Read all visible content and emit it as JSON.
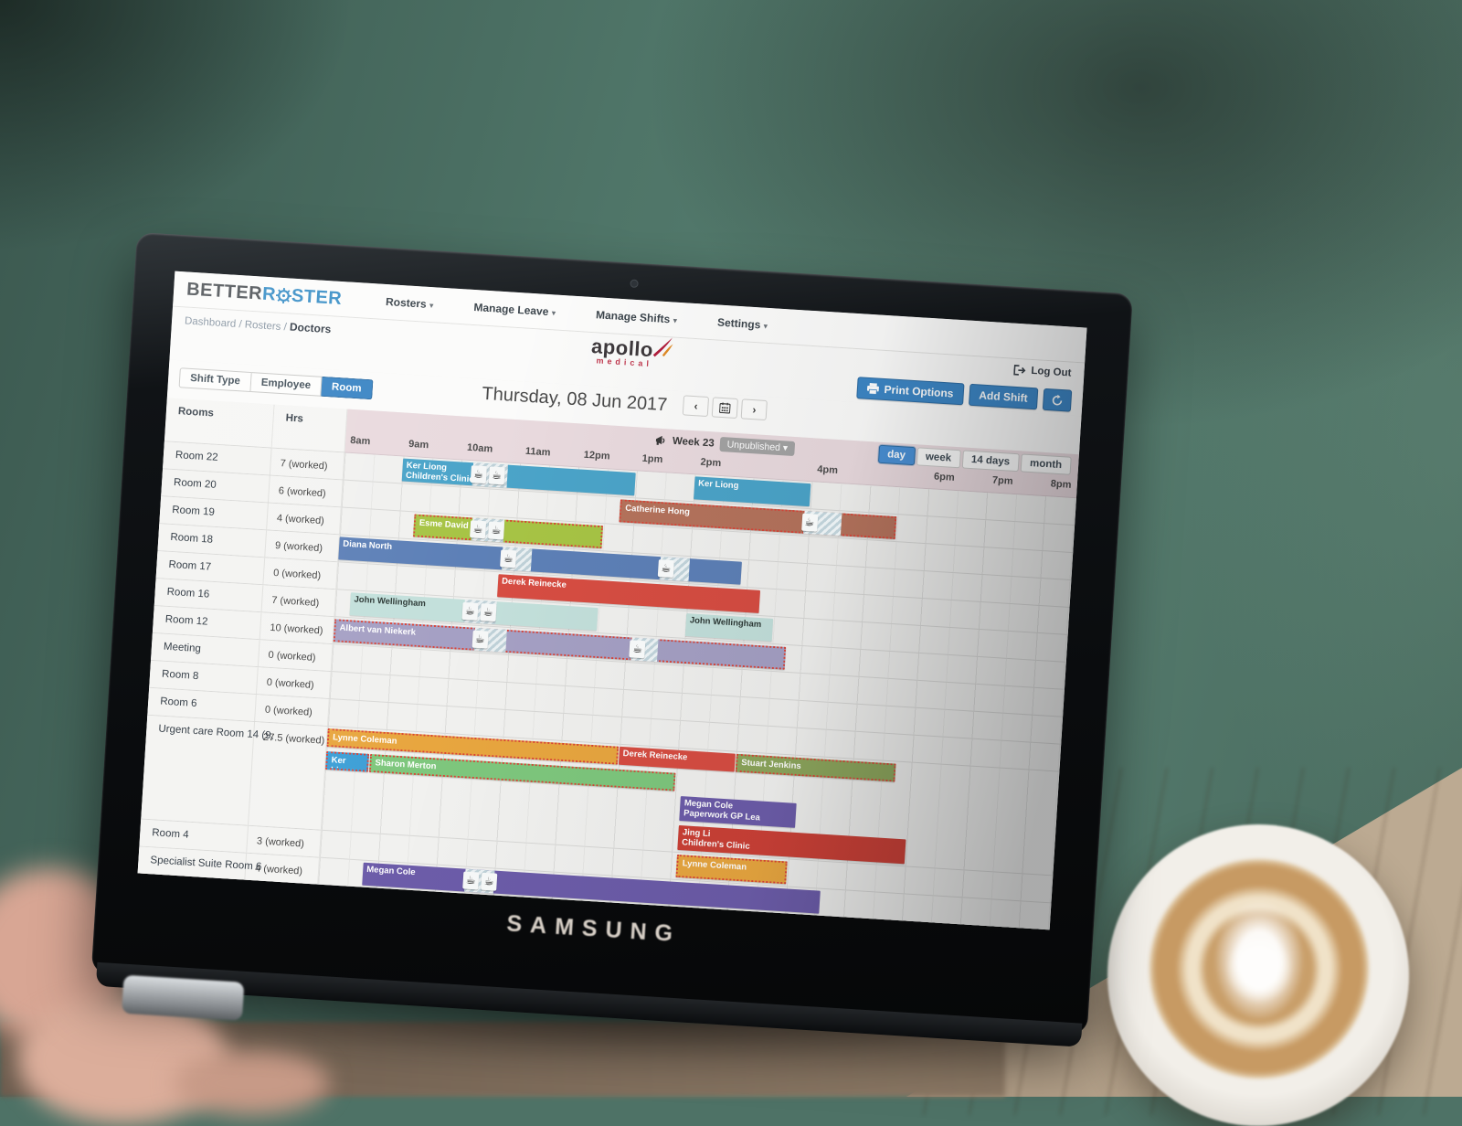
{
  "nav": {
    "logo_part1": "BETTER",
    "logo_part2_pre": "R",
    "logo_part2_post": "STER",
    "menus": [
      {
        "label": "Rosters"
      },
      {
        "label": "Manage Leave"
      },
      {
        "label": "Manage Shifts"
      },
      {
        "label": "Settings"
      }
    ]
  },
  "breadcrumb": {
    "items": [
      "Dashboard",
      "Rosters"
    ],
    "current": "Doctors",
    "separator": "/"
  },
  "session": {
    "logout_label": "Log Out"
  },
  "brand": {
    "name": "apollo",
    "sub": "medical"
  },
  "actions": {
    "print_label": "Print Options",
    "add_shift_label": "Add Shift"
  },
  "filters": {
    "tabs": [
      {
        "label": "Shift Type",
        "active": false
      },
      {
        "label": "Employee",
        "active": false
      },
      {
        "label": "Room",
        "active": true
      }
    ]
  },
  "date_nav": {
    "date_label": "Thursday, 08 Jun 2017",
    "prev": "‹",
    "next": "›"
  },
  "week": {
    "label": "Week 23",
    "status": "Unpublished ▾"
  },
  "views": [
    {
      "label": "day",
      "active": true
    },
    {
      "label": "week",
      "active": false
    },
    {
      "label": "14 days",
      "active": false
    },
    {
      "label": "month",
      "active": false
    }
  ],
  "time_axis": [
    {
      "offset": 0,
      "label": "8am"
    },
    {
      "offset": 1,
      "label": "9am"
    },
    {
      "offset": 2,
      "label": "10am"
    },
    {
      "offset": 3,
      "label": "11am"
    },
    {
      "offset": 4,
      "label": "12pm"
    },
    {
      "offset": 5,
      "label": "1pm"
    },
    {
      "offset": 6,
      "label": "2pm"
    },
    {
      "offset": 8,
      "label": "4pm"
    },
    {
      "offset": 10,
      "label": "6pm"
    },
    {
      "offset": 11,
      "label": "7pm"
    },
    {
      "offset": 12,
      "label": "8pm"
    }
  ],
  "grid": {
    "col_rooms": "Rooms",
    "col_hrs": "Hrs",
    "rows": [
      {
        "room": "Room 22",
        "hrs": "7 (worked)",
        "lanes": [
          [
            {
              "name": "Ker Liong",
              "name2": "Children's Clinic",
              "start": 1,
              "end": 5,
              "color": "#4ba4c9",
              "breaks": [
                {
                  "start": 2.2,
                  "end": 2.8,
                  "cups": 2
                }
              ]
            },
            {
              "name": "Ker Liong",
              "start": 6,
              "end": 8,
              "color": "#4ba4c9"
            }
          ]
        ]
      },
      {
        "room": "Room 20",
        "hrs": "6 (worked)",
        "lanes": [
          [
            {
              "name": "Catherine Hong",
              "start": 4.75,
              "end": 9.5,
              "color": "#b5735c",
              "dashed": true,
              "breaks": [
                {
                  "start": 7.9,
                  "end": 8.55,
                  "cups": 1
                }
              ]
            }
          ]
        ]
      },
      {
        "room": "Room 19",
        "hrs": "4 (worked)",
        "lanes": [
          [
            {
              "name": "Esme David",
              "start": 1.25,
              "end": 4.5,
              "color": "#a7c445",
              "dashed": true,
              "breaks": [
                {
                  "start": 2.25,
                  "end": 2.8,
                  "cups": 2
                }
              ]
            }
          ]
        ]
      },
      {
        "room": "Room 18",
        "hrs": "9 (worked)",
        "lanes": [
          [
            {
              "name": "Diana North",
              "start": 0,
              "end": 6.9,
              "color": "#5d80b7",
              "breaks": [
                {
                  "start": 2.8,
                  "end": 3.3,
                  "cups": 1
                },
                {
                  "start": 5.5,
                  "end": 6.0,
                  "cups": 1
                }
              ]
            }
          ]
        ]
      },
      {
        "room": "Room 17",
        "hrs": "0 (worked)",
        "lanes": [
          [
            {
              "name": "Derek Reinecke",
              "start": 2.75,
              "end": 7.25,
              "color": "#d74d42"
            }
          ]
        ]
      },
      {
        "room": "Room 16",
        "hrs": "7 (worked)",
        "lanes": [
          [
            {
              "name": "John Wellingham",
              "start": 0.25,
              "end": 4.5,
              "color": "#c3e0db",
              "textDark": true,
              "breaks": [
                {
                  "start": 2.2,
                  "end": 2.75,
                  "cups": 2
                }
              ]
            },
            {
              "name": "John Wellingham",
              "start": 6,
              "end": 7.5,
              "color": "#c3e0db",
              "textDark": true
            }
          ]
        ]
      },
      {
        "room": "Room 12",
        "hrs": "10 (worked)",
        "lanes": [
          [
            {
              "name": "Albert van Niekerk",
              "start": 0,
              "end": 7.75,
              "color": "#a5a0c4",
              "dashed": true,
              "breaks": [
                {
                  "start": 2.4,
                  "end": 2.95,
                  "cups": 1
                },
                {
                  "start": 5.1,
                  "end": 5.55,
                  "cups": 1
                }
              ]
            }
          ]
        ]
      },
      {
        "room": "Meeting",
        "hrs": "0 (worked)",
        "lanes": [
          []
        ]
      },
      {
        "room": "Room 8",
        "hrs": "0 (worked)",
        "lanes": [
          []
        ]
      },
      {
        "room": "Room 6",
        "hrs": "0 (worked)",
        "lanes": [
          []
        ]
      },
      {
        "room": "Urgent care Room 14 (9,",
        "hrs": "27.5 (worked)",
        "lanes": [
          [
            {
              "name": "Lynne Coleman",
              "start": 0,
              "end": 5,
              "color": "#e8a63f",
              "dashed": true
            },
            {
              "name": "Derek Reinecke",
              "start": 5,
              "end": 7,
              "color": "#d74d42"
            },
            {
              "name": "Stuart Jenkins",
              "start": 7,
              "end": 9.75,
              "color": "#8da65c",
              "dashed": true
            }
          ],
          [
            {
              "name": "Ker Liong",
              "start": 0,
              "end": 0.75,
              "color": "#3d9fd6",
              "dashed": true
            },
            {
              "name": "Sharon Merton",
              "start": 0.75,
              "end": 6,
              "color": "#7ec77d",
              "dashed": true
            }
          ],
          [
            {
              "name": "Megan Cole",
              "name2": "Paperwork GP Lea",
              "start": 6.1,
              "end": 8.1,
              "color": "#6c5ca9"
            }
          ],
          [
            {
              "name": "Jing Li",
              "name2": "Children's Clinic",
              "start": 6.1,
              "end": 10,
              "color": "#cb4036"
            }
          ]
        ]
      },
      {
        "room": "Room 4",
        "hrs": "3 (worked)",
        "lanes": [
          [
            {
              "name": "Lynne Coleman",
              "start": 6.1,
              "end": 8,
              "color": "#e8a63f",
              "dashed": true
            }
          ]
        ]
      },
      {
        "room": "Specialist Suite Room 6",
        "hrs": "4 (worked)",
        "lanes": [
          [
            {
              "name": "Megan Cole",
              "start": 0.75,
              "end": 8.6,
              "color": "#6c5ca9",
              "breaks": [
                {
                  "start": 2.5,
                  "end": 3.0,
                  "cups": 2
                }
              ]
            }
          ]
        ]
      }
    ]
  },
  "device": {
    "brand_label": "SAMSUNG"
  },
  "colors": {
    "accent_blue": "#3c86c5",
    "band_pink": "#e9dade",
    "break_hatch": "#bed0d7",
    "dashed_border": "#da4438"
  }
}
